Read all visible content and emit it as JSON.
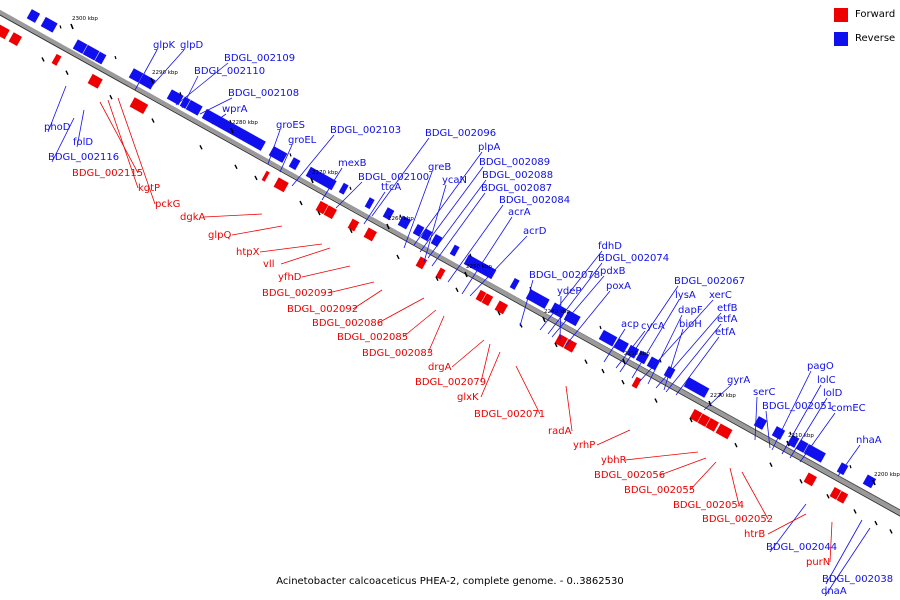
{
  "colors": {
    "forward": "#ee0000",
    "reverse": "#1010ee",
    "backbone": "#9a9a9a"
  },
  "legend": [
    {
      "label": "Forward",
      "color": "#ee0000"
    },
    {
      "label": "Reverse",
      "color": "#1010ee"
    }
  ],
  "caption": "Acinetobacter calcoaceticus PHEA-2, complete genome. - 0..3862530",
  "scale_ticks": [
    "2300 kbp",
    "2290 kbp",
    "2280 kbp",
    "2270 kbp",
    "2260 kbp",
    "2250 kbp",
    "2240 kbp",
    "2230 kbp",
    "2220 kbp",
    "2210 kbp",
    "2200 kbp"
  ],
  "reverse_labels": [
    "glpK",
    "glpD",
    "BDGL_002109",
    "BDGL_002110",
    "BDGL_002108",
    "wprA",
    "groES",
    "BDGL_002103",
    "groEL",
    "BDGL_002096",
    "mexB",
    "plpA",
    "greB",
    "BDGL_002089",
    "BDGL_002100",
    "BDGL_002088",
    "ycaN",
    "ttcA",
    "BDGL_002087",
    "BDGL_002084",
    "acrA",
    "acrD",
    "fdhD",
    "BDGL_002074",
    "pdxB",
    "BDGL_002078",
    "ydeP",
    "poxA",
    "BDGL_002067",
    "lysA",
    "xerC",
    "dapF",
    "etfB",
    "etfA",
    "acp",
    "cycA",
    "bioH",
    "etfA",
    "gyrA",
    "pagO",
    "serC",
    "lolC",
    "BDGL_002051",
    "lolD",
    "comEC",
    "nhaA",
    "phoD",
    "folD",
    "BDGL_002116",
    "BDGL_002044",
    "BDGL_002038",
    "dnaA"
  ],
  "forward_labels": [
    "BDGL_002115",
    "kgtP",
    "pckG",
    "dgkA",
    "glpQ",
    "htpX",
    "vll",
    "yfhD",
    "BDGL_002093",
    "BDGL_002092",
    "BDGL_002086",
    "BDGL_002085",
    "BDGL_002083",
    "drgA",
    "BDGL_002079",
    "glxK",
    "BDGL_002071",
    "radA",
    "yrhP",
    "ybhR",
    "BDGL_002056",
    "BDGL_002055",
    "BDGL_002054",
    "BDGL_002052",
    "htrB",
    "purN"
  ]
}
